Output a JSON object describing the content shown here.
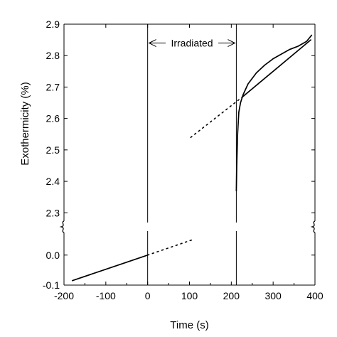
{
  "chart_data": {
    "type": "line",
    "title": "",
    "xlabel": "Time (s)",
    "ylabel": "Exothermicity (%)",
    "xlim": [
      -200,
      400
    ],
    "ylim_upper": [
      2.2667,
      2.9
    ],
    "ylim_lower": [
      -0.1,
      0.08
    ],
    "x_ticks": [
      -200,
      -100,
      0,
      100,
      200,
      300,
      400
    ],
    "y_ticks_upper": [
      2.3,
      2.4,
      2.5,
      2.6,
      2.7,
      2.8,
      2.9
    ],
    "y_ticks_lower": [
      -0.1,
      0.0
    ],
    "grid": false,
    "annotation": {
      "text": "Irradiated",
      "x_start": 0,
      "x_end": 212,
      "y": 2.84
    },
    "vertical_lines": [
      0,
      212
    ],
    "series": [
      {
        "style": "solid",
        "panel": "lower",
        "x": [
          -180,
          0
        ],
        "y": [
          -0.085,
          0.0
        ]
      },
      {
        "style": "dotted",
        "panel": "lower",
        "x": [
          0,
          105
        ],
        "y": [
          0.0,
          0.05
        ]
      },
      {
        "style": "dotted",
        "panel": "upper",
        "x": [
          103,
          228
        ],
        "y": [
          2.54,
          2.67
        ]
      },
      {
        "style": "solid",
        "panel": "upper",
        "x": [
          228,
          390
        ],
        "y": [
          2.67,
          2.85
        ]
      },
      {
        "style": "solid",
        "panel": "upper",
        "x": [
          212,
          213,
          215,
          218,
          222,
          228,
          240,
          260,
          280,
          300,
          320,
          340,
          360,
          380,
          392
        ],
        "y": [
          2.37,
          2.45,
          2.55,
          2.62,
          2.65,
          2.675,
          2.71,
          2.745,
          2.77,
          2.79,
          2.805,
          2.82,
          2.83,
          2.845,
          2.865
        ]
      }
    ]
  }
}
